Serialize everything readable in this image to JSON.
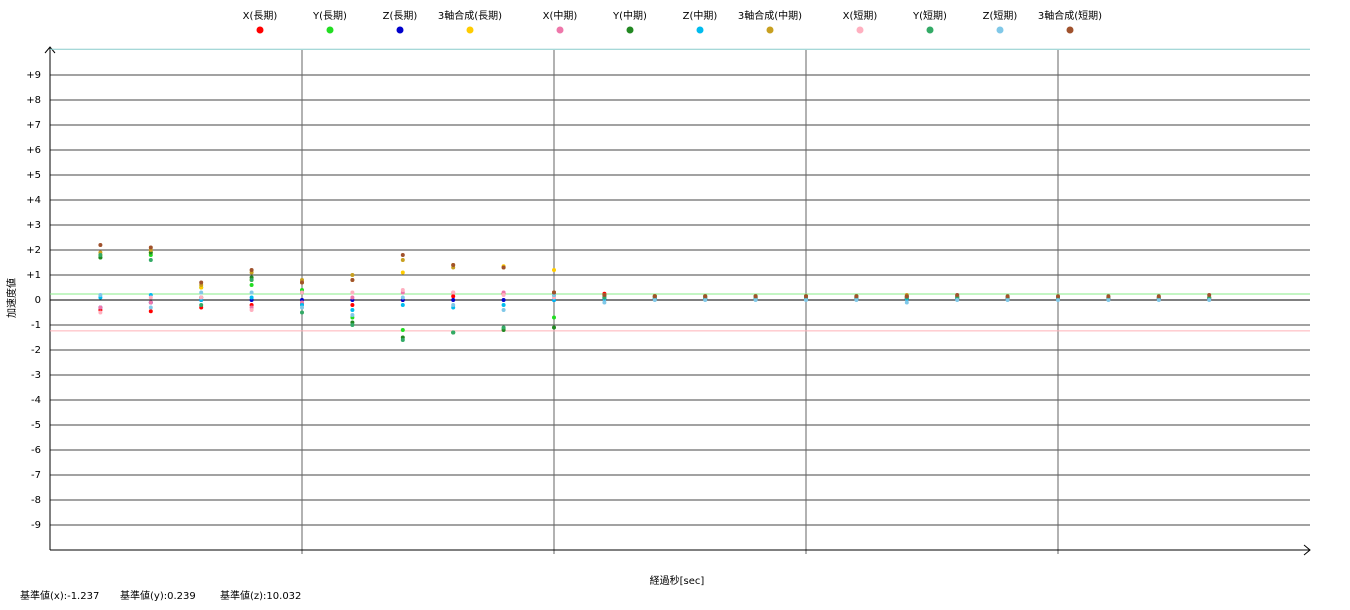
{
  "chart_data": {
    "type": "scatter",
    "y_label": "加速度値",
    "x_label": "経過秒[sec]",
    "x": [
      2,
      4,
      6,
      8,
      10,
      12,
      14,
      16,
      18,
      20,
      22,
      24,
      26,
      28,
      30,
      32,
      34,
      36,
      38,
      40,
      42,
      44,
      46
    ],
    "xlim": [
      0,
      50
    ],
    "xgrid": [
      10,
      20,
      30,
      40
    ],
    "ylim": [
      -10,
      10
    ],
    "yticks": [
      {
        "value": 9,
        "label": "+9"
      },
      {
        "value": 8,
        "label": "+8"
      },
      {
        "value": 7,
        "label": "+7"
      },
      {
        "value": 6,
        "label": "+6"
      },
      {
        "value": 5,
        "label": "+5"
      },
      {
        "value": 4,
        "label": "+4"
      },
      {
        "value": 3,
        "label": "+3"
      },
      {
        "value": 2,
        "label": "+2"
      },
      {
        "value": 1,
        "label": "+1"
      },
      0,
      -1,
      -2,
      -3,
      -4,
      -5,
      -6,
      -7,
      -8,
      -9
    ],
    "grid": true,
    "reference_lines": [
      {
        "value": -1.237,
        "label": "基準値(x):-1.237",
        "color": "#ffb0b8"
      },
      {
        "value": 0.239,
        "label": "基準値(y):0.239",
        "color": "#88ee88"
      },
      {
        "value": 10.032,
        "label": "基準値(z):10.032",
        "color": "#88cccc"
      }
    ],
    "series": [
      {
        "name": "X(長期)",
        "color": "#ff0000",
        "values": [
          -0.4,
          -0.45,
          -0.3,
          -0.2,
          -0.15,
          -0.2,
          0,
          0.15,
          0.25,
          0.3,
          0.25,
          0.15,
          0.1,
          0.1,
          0.1,
          0.1,
          0.1,
          0.1,
          0.1,
          0.1,
          0.1,
          0.1,
          0.1
        ]
      },
      {
        "name": "Y(長期)",
        "color": "#22dd22",
        "values": [
          1.7,
          1.8,
          0.5,
          0.6,
          0.4,
          -0.7,
          -1.2,
          -1.3,
          -1.15,
          -0.7,
          0.1,
          0.1,
          0.1,
          0.1,
          0.1,
          0.1,
          0.1,
          0.1,
          0.1,
          0.1,
          0.1,
          0.1,
          0.1
        ]
      },
      {
        "name": "Z(長期)",
        "color": "#0000cc",
        "values": [
          -0.3,
          -0.1,
          0,
          0,
          0,
          0,
          0,
          0,
          0,
          0,
          0.05,
          0.05,
          0.05,
          0.05,
          0.05,
          0.05,
          0.05,
          0.05,
          0.05,
          0.05,
          0.05,
          0.05,
          0.05
        ]
      },
      {
        "name": "3軸合成(長期)",
        "color": "#ffcc00",
        "values": [
          1.8,
          1.9,
          0.5,
          0.8,
          0.7,
          0.8,
          1.1,
          1.4,
          1.35,
          1.2,
          0.2,
          0.15,
          0.1,
          0.1,
          0.1,
          0.1,
          0.1,
          0.1,
          0.1,
          0.1,
          0.1,
          0.1,
          0.1
        ]
      },
      {
        "name": "X(中期)",
        "color": "#ee77aa",
        "values": [
          -0.3,
          -0.1,
          0.1,
          -0.3,
          -0.1,
          0.1,
          0.3,
          0.3,
          0.3,
          0.2,
          0.1,
          0.1,
          0.1,
          0.1,
          0.1,
          0.1,
          0.1,
          0.1,
          null,
          null,
          null,
          null,
          null
        ]
      },
      {
        "name": "Y(中期)",
        "color": "#228822",
        "values": [
          1.7,
          1.9,
          0.1,
          0.9,
          0.3,
          -0.9,
          -1.5,
          -1.3,
          -1.2,
          -1.1,
          0.15,
          0.15,
          0.15,
          0.15,
          0.15,
          0.15,
          0.15,
          0.15,
          null,
          null,
          null,
          null,
          null
        ]
      },
      {
        "name": "Z(中期)",
        "color": "#00bbee",
        "values": [
          0.1,
          0.2,
          0,
          0.1,
          -0.2,
          -0.4,
          -0.2,
          -0.3,
          -0.2,
          0,
          0.05,
          0.05,
          0.05,
          0.05,
          0.05,
          0.05,
          0.05,
          0.05,
          null,
          null,
          null,
          null,
          null
        ]
      },
      {
        "name": "3軸合成(中期)",
        "color": "#c8a020",
        "values": [
          1.9,
          2,
          0.6,
          1.1,
          0.8,
          1,
          1.6,
          1.3,
          1.3,
          0.3,
          0.2,
          0.15,
          0.15,
          0.15,
          0.15,
          0.15,
          0.2,
          0.15,
          null,
          null,
          null,
          null,
          null
        ]
      },
      {
        "name": "X(短期)",
        "color": "#ffb0c0",
        "values": [
          -0.5,
          0.1,
          0.1,
          -0.4,
          0.3,
          0.3,
          0.4,
          0.3,
          0.2,
          0.1,
          0.1,
          0.1,
          0.1,
          0.1,
          0.1,
          0.1,
          0.1,
          0.1,
          0.1,
          0.1,
          0.1,
          0.1,
          0.1
        ]
      },
      {
        "name": "Y(短期)",
        "color": "#33aa66",
        "values": [
          1.8,
          1.6,
          -0.2,
          0.8,
          -0.5,
          -1,
          -1.6,
          -1.3,
          -1.1,
          0.2,
          0.1,
          0.1,
          0.1,
          0.1,
          0.1,
          0.1,
          0.1,
          0.1,
          0.1,
          0.1,
          0.1,
          0.1,
          0.1
        ]
      },
      {
        "name": "Z(短期)",
        "color": "#80c8e8",
        "values": [
          0.2,
          -0.3,
          0.3,
          0.3,
          -0.3,
          -0.6,
          0.1,
          -0.2,
          -0.4,
          0.2,
          -0.1,
          0,
          0,
          0,
          0,
          0,
          -0.1,
          0,
          0,
          0,
          0,
          0,
          0
        ]
      },
      {
        "name": "3軸合成(短期)",
        "color": "#a0522d",
        "values": [
          2.2,
          2.1,
          0.7,
          1.2,
          0.7,
          0.8,
          1.8,
          1.4,
          1.3,
          0.3,
          0.2,
          0.15,
          0.15,
          0.15,
          0.15,
          0.15,
          0.15,
          0.2,
          0.15,
          0.15,
          0.15,
          0.15,
          0.2
        ]
      }
    ]
  }
}
